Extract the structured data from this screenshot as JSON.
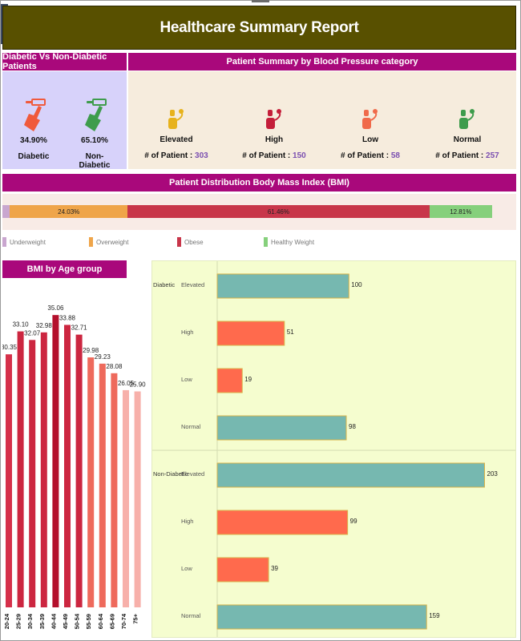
{
  "report": {
    "title": "Healthcare Summary Report",
    "side_controls": [
      "^",
      "1",
      "▾"
    ]
  },
  "diabetic_panel": {
    "header": "Diabetic Vs Non-Diabetic Patients",
    "items": [
      {
        "label": "Diabetic",
        "percent": "34.90%",
        "icon": "syringe-icon",
        "color": "#f05a3c"
      },
      {
        "label": "Non-Diabetic",
        "percent": "65.10%",
        "icon": "syringe-icon",
        "color": "#3e9c4c"
      }
    ]
  },
  "bp_panel": {
    "header": "Patient Summary by Blood Pressure category",
    "count_label": "# of Patient :",
    "items": [
      {
        "name": "Elevated",
        "count": "303",
        "icon": "blood-pressure-monitor-icon",
        "color": "#e7b21c"
      },
      {
        "name": "High",
        "count": "150",
        "icon": "blood-pressure-monitor-icon",
        "color": "#c41e3a"
      },
      {
        "name": "Low",
        "count": "58",
        "icon": "blood-pressure-monitor-icon",
        "color": "#f06a4a"
      },
      {
        "name": "Normal",
        "count": "257",
        "icon": "blood-pressure-monitor-icon",
        "color": "#3e9c4c"
      }
    ]
  },
  "bmi_panel": {
    "header": "Patient Distribution Body Mass Index (BMI)"
  },
  "age_panel": {
    "header": "BMI by Age group"
  },
  "chart_data": [
    {
      "type": "bar",
      "orientation": "horizontal-stacked",
      "categories": [
        "Underweight",
        "Overweight",
        "Obese",
        "Healthy Weight"
      ],
      "values": [
        1.5,
        24.03,
        61.46,
        12.81
      ],
      "labels": [
        "",
        "24.03%",
        "61.46%",
        "12.81%"
      ],
      "colors": [
        "#c9a6cf",
        "#efa54a",
        "#c8364a",
        "#86d07c"
      ],
      "legend": "bottom"
    },
    {
      "type": "bar",
      "categories": [
        "20-24",
        "25-29",
        "30-34",
        "35-39",
        "40-44",
        "45-49",
        "50-54",
        "55-59",
        "60-64",
        "65-69",
        "70-74",
        "75+"
      ],
      "values": [
        30.35,
        33.1,
        32.07,
        32.98,
        35.06,
        33.88,
        32.71,
        29.98,
        29.23,
        28.08,
        26.05,
        25.9
      ],
      "labels": [
        "30.35",
        "33.10",
        "32.07",
        "32.98",
        "35.06",
        "33.88",
        "32.71",
        "29.98",
        "29.23",
        "28.08",
        "26.05",
        "25.90"
      ],
      "colors": [
        "#d6304a",
        "#cc2640",
        "#cc2640",
        "#cc2640",
        "#b4102c",
        "#cc2640",
        "#cc2640",
        "#ee6a5c",
        "#ee6a5c",
        "#ee6a5c",
        "#f7b0aa",
        "#f7b0aa"
      ],
      "ylim": [
        0,
        37
      ]
    },
    {
      "type": "bar",
      "orientation": "horizontal",
      "groups": [
        {
          "name": "Diabetic",
          "categories": [
            "Elevated",
            "High",
            "Low",
            "Normal"
          ],
          "values": [
            100,
            51,
            19,
            98
          ]
        },
        {
          "name": "Non-Diabetic",
          "categories": [
            "Elevated",
            "High",
            "Low",
            "Normal"
          ],
          "values": [
            203,
            99,
            39,
            159
          ]
        }
      ],
      "category_colors": {
        "Elevated": "#76b8b0",
        "High": "#ff6a4d",
        "Low": "#ff6a4d",
        "Normal": "#76b8b0"
      },
      "xlim": [
        0,
        210
      ]
    }
  ]
}
